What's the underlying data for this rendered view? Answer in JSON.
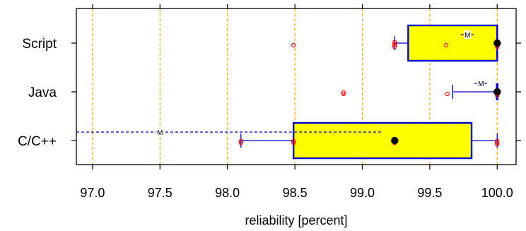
{
  "chart_data": {
    "type": "box",
    "title": "",
    "xlabel": "reliability [percent]",
    "ylabel": "",
    "xlim": [
      96.88,
      100.14
    ],
    "x_ticks": [
      "97.0",
      "97.5",
      "98.0",
      "98.5",
      "99.0",
      "99.5",
      "100.0"
    ],
    "grid": "vertical dashed at ticks",
    "colors": {
      "box_fill": "#ffff00",
      "box_border": "#0000cc",
      "whisker": "#0000cc",
      "mean_line": "#0000cc",
      "outlier": "#ff0000",
      "grid": "#ffa500",
      "median_point": "#000000"
    },
    "mean_marker": "M",
    "categories": [
      {
        "name": "Script",
        "q1": 99.34,
        "median": 100.0,
        "q3": 100.0,
        "whisker_low": 99.24,
        "whisker_high": 100.0,
        "mean": 99.78,
        "sd_low": 99.73,
        "sd_high": 99.84,
        "outliers": [
          98.49,
          99.24,
          99.24,
          99.24,
          99.24,
          99.62,
          100.0,
          100.0,
          100.0
        ]
      },
      {
        "name": "Java",
        "q1": 100.0,
        "median": 100.0,
        "q3": 100.0,
        "whisker_low": 99.67,
        "whisker_high": 100.0,
        "mean": 99.88,
        "sd_low": 99.83,
        "sd_high": 99.93,
        "outliers": [
          98.86,
          98.86,
          99.63,
          100.0,
          100.0,
          100.0
        ]
      },
      {
        "name": "C/C++",
        "q1": 98.49,
        "median": 99.24,
        "q3": 99.81,
        "whisker_low": 98.1,
        "whisker_high": 100.0,
        "mean": 97.5,
        "sd_low": 96.88,
        "sd_high": 99.14,
        "outliers": [
          98.1,
          98.1,
          98.49,
          98.49,
          99.24,
          99.24,
          100.0,
          100.0,
          100.0
        ]
      }
    ]
  }
}
